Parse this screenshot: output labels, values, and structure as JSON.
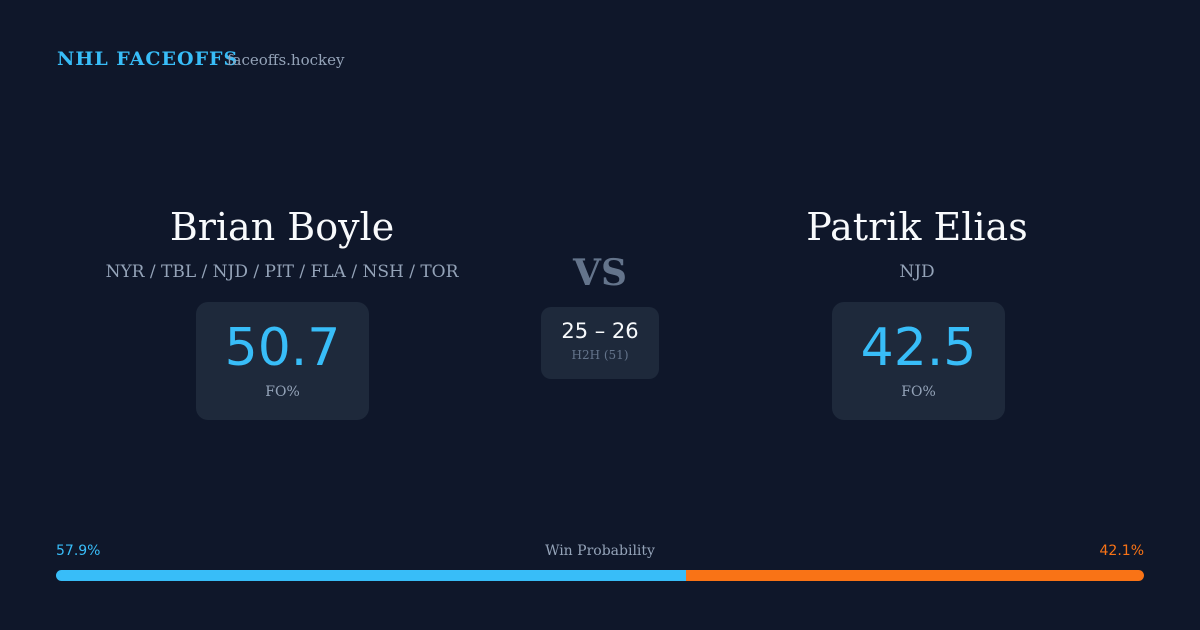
{
  "header": {
    "title": "NHL FACEOFFS",
    "site": "faceoffs.hockey"
  },
  "players": [
    {
      "name": "Brian Boyle",
      "teams": "NYR / TBL / NJD / PIT / FLA / NSH / TOR",
      "fo_pct": 50.7,
      "fo_label": "FO%"
    },
    {
      "name": "Patrik Elias",
      "teams": "NJD",
      "fo_pct": 42.5,
      "fo_label": "FO%"
    }
  ],
  "versus": "VS",
  "h2h": {
    "score": "25 – 26",
    "label": "H2H (51)"
  },
  "win_probability": {
    "label": "Win Probability",
    "left": {
      "value": 57.9,
      "label": "57.9%",
      "color": "#38bdf8"
    },
    "right": {
      "value": 42.1,
      "label": "42.1%",
      "color": "#f97316"
    }
  }
}
